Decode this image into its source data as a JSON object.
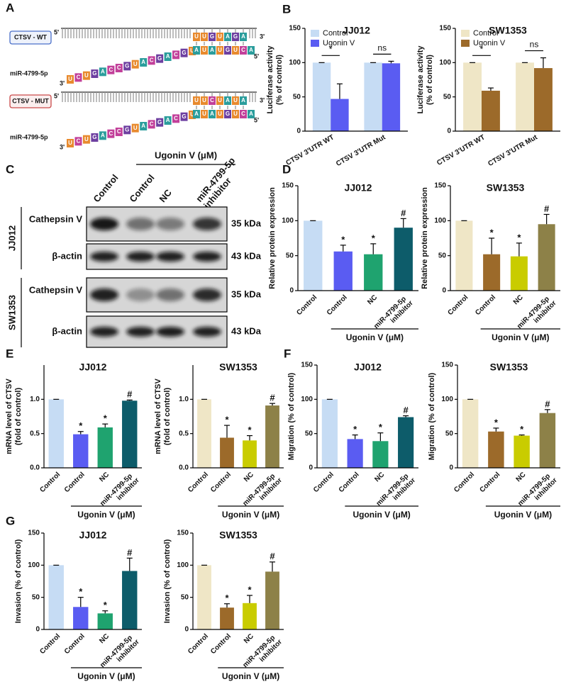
{
  "panel_a": {
    "label": "A",
    "five": "5'",
    "three": "3'",
    "mirna": "miR-4799-5p",
    "seq": "UCUGACCGUACGACGUAUAUGUCA",
    "constructs": [
      {
        "name": "CTSV - WT",
        "site": "UUGUAGA"
      },
      {
        "name": "CTSV - MUT",
        "site": "UUCUAUA"
      }
    ]
  },
  "panel_c": {
    "label": "C",
    "group_label": "Ugonin V (μM)",
    "lanes": [
      "Control",
      "Control",
      "NC",
      "miR-4799-5p inhibitor"
    ],
    "cell_lines": [
      "JJ012",
      "SW1353"
    ],
    "proteins": [
      {
        "name": "Cathepsin V",
        "size": "35 kDa"
      },
      {
        "name": "β-actin",
        "size": "43 kDa"
      }
    ]
  },
  "chart_data": [
    {
      "type": "bar",
      "panel": "B",
      "title": "JJ012",
      "ylabel": [
        "Luciferase activity",
        "(% of control)"
      ],
      "categories": [
        "CTSV 3'UTR WT",
        "CTSV 3'UTR Mut"
      ],
      "series": [
        {
          "name": "Control",
          "color": "#c6dcf4",
          "values": [
            100,
            100
          ],
          "errors": [
            0,
            0
          ]
        },
        {
          "name": "Ugonin V",
          "color": "#5a5cf2",
          "values": [
            47,
            99
          ],
          "errors": [
            22,
            3
          ]
        }
      ],
      "significance": [
        "*",
        "ns"
      ],
      "ylim": [
        0,
        150
      ],
      "yticks": [
        0,
        50,
        100,
        150
      ],
      "legend": "upper left"
    },
    {
      "type": "bar",
      "title": "SW1353",
      "ylabel": [
        "Luciferase activity",
        "(% of control)"
      ],
      "categories": [
        "CTSV 3'UTR WT",
        "CTSV 3'UTR Mut"
      ],
      "series": [
        {
          "name": "Control",
          "color": "#efe6c6",
          "values": [
            100,
            100
          ],
          "errors": [
            0,
            0
          ]
        },
        {
          "name": "Ugonin V",
          "color": "#9c6a2a",
          "values": [
            59,
            92
          ],
          "errors": [
            4,
            15
          ]
        }
      ],
      "significance": [
        "*",
        "ns"
      ],
      "ylim": [
        0,
        150
      ],
      "yticks": [
        0,
        50,
        100,
        150
      ],
      "legend": "upper left"
    },
    {
      "type": "bar",
      "panel": "D",
      "title": "JJ012",
      "ylabel": [
        "Relative protein expression"
      ],
      "categories": [
        "Control",
        "Control",
        "NC",
        "miR-4799-5p inhibitor"
      ],
      "values": [
        100,
        56,
        52,
        90
      ],
      "errors": [
        0,
        9,
        15,
        13
      ],
      "marks": [
        null,
        "*",
        "*",
        "#"
      ],
      "colors": [
        "#c6dcf4",
        "#5a5cf2",
        "#1fa36f",
        "#0d5c6a"
      ],
      "group_label": "Ugonin V (μM)",
      "ylim": [
        0,
        150
      ],
      "yticks": [
        0,
        50,
        100,
        150
      ]
    },
    {
      "type": "bar",
      "title": "SW1353",
      "ylabel": [
        "Relative protein expression"
      ],
      "categories": [
        "Control",
        "Control",
        "NC",
        "miR-4799-5p inhibitor"
      ],
      "values": [
        100,
        52,
        49,
        95
      ],
      "errors": [
        0,
        23,
        19,
        14
      ],
      "marks": [
        null,
        "*",
        "*",
        "#"
      ],
      "colors": [
        "#efe6c6",
        "#9c6a2a",
        "#c9cc00",
        "#8d8148"
      ],
      "group_label": "Ugonin V (μM)",
      "ylim": [
        0,
        150
      ],
      "yticks": [
        0,
        50,
        100,
        150
      ]
    },
    {
      "type": "bar",
      "panel": "E",
      "title": "JJ012",
      "ylabel": [
        "mRNA level of CTSV",
        "(fold of control)"
      ],
      "categories": [
        "Control",
        "Control",
        "NC",
        "miR-4799-5p inhibitor"
      ],
      "values": [
        1.0,
        0.49,
        0.59,
        0.98
      ],
      "errors": [
        0,
        0.04,
        0.05,
        0.01
      ],
      "marks": [
        null,
        "*",
        "*",
        "#"
      ],
      "colors": [
        "#c6dcf4",
        "#5a5cf2",
        "#1fa36f",
        "#0d5c6a"
      ],
      "group_label": "Ugonin V (μM)",
      "ylim": [
        0,
        1.5
      ],
      "yticks": [
        {
          "value": 0,
          "label": "0.0"
        },
        0.5,
        {
          "value": 1,
          "label": "1.0"
        }
      ]
    },
    {
      "type": "bar",
      "title": "SW1353",
      "ylabel": [
        "mRNA level of CTSV",
        "(fold of control)"
      ],
      "categories": [
        "Control",
        "Control",
        "NC",
        "miR-4799-5p inhibitor"
      ],
      "values": [
        1.0,
        0.44,
        0.4,
        0.91
      ],
      "errors": [
        0,
        0.18,
        0.07,
        0.03
      ],
      "marks": [
        null,
        "*",
        "*",
        "#"
      ],
      "colors": [
        "#efe6c6",
        "#9c6a2a",
        "#c9cc00",
        "#8d8148"
      ],
      "group_label": "Ugonin V (μM)",
      "ylim": [
        0,
        1.5
      ],
      "yticks": [
        {
          "value": 0,
          "label": "0.0"
        },
        0.5,
        {
          "value": 1,
          "label": "1.0"
        }
      ]
    },
    {
      "type": "bar",
      "panel": "F",
      "title": "JJ012",
      "ylabel": [
        "Migration (% of control)"
      ],
      "categories": [
        "Control",
        "Control",
        "NC",
        "miR-4799-5p inhibitor"
      ],
      "values": [
        100,
        42,
        39,
        74
      ],
      "errors": [
        0,
        6,
        12,
        2
      ],
      "marks": [
        null,
        "*",
        "*",
        "#"
      ],
      "colors": [
        "#c6dcf4",
        "#5a5cf2",
        "#1fa36f",
        "#0d5c6a"
      ],
      "group_label": "Ugonin V (μM)",
      "ylim": [
        0,
        150
      ],
      "yticks": [
        0,
        50,
        100,
        150
      ]
    },
    {
      "type": "bar",
      "title": "SW1353",
      "ylabel": [
        "Migration (% of control)"
      ],
      "categories": [
        "Control",
        "Control",
        "NC",
        "miR-4799-5p inhibitor"
      ],
      "values": [
        100,
        53,
        47,
        80
      ],
      "errors": [
        0,
        5,
        1,
        5
      ],
      "marks": [
        null,
        "*",
        "*",
        "#"
      ],
      "colors": [
        "#efe6c6",
        "#9c6a2a",
        "#c9cc00",
        "#8d8148"
      ],
      "group_label": "Ugonin V (μM)",
      "ylim": [
        0,
        150
      ],
      "yticks": [
        0,
        50,
        100,
        150
      ]
    },
    {
      "type": "bar",
      "panel": "G",
      "title": "JJ012",
      "ylabel": [
        "Invasion (% of control)"
      ],
      "categories": [
        "Control",
        "Control",
        "NC",
        "miR-4799-5p inhibitor"
      ],
      "values": [
        100,
        35,
        25,
        91
      ],
      "errors": [
        0,
        15,
        4,
        20
      ],
      "marks": [
        null,
        "*",
        "*",
        "#"
      ],
      "colors": [
        "#c6dcf4",
        "#5a5cf2",
        "#1fa36f",
        "#0d5c6a"
      ],
      "group_label": "Ugonin V (μM)",
      "ylim": [
        0,
        150
      ],
      "yticks": [
        0,
        50,
        100,
        150
      ]
    },
    {
      "type": "bar",
      "title": "SW1353",
      "ylabel": [
        "Invasion (% of control)"
      ],
      "categories": [
        "Control",
        "Control",
        "NC",
        "miR-4799-5p inhibitor"
      ],
      "values": [
        100,
        34,
        41,
        90
      ],
      "errors": [
        0,
        6,
        12,
        15
      ],
      "marks": [
        null,
        "*",
        "*",
        "#"
      ],
      "colors": [
        "#efe6c6",
        "#9c6a2a",
        "#c9cc00",
        "#8d8148"
      ],
      "group_label": "Ugonin V (μM)",
      "ylim": [
        0,
        150
      ],
      "yticks": [
        0,
        50,
        100,
        150
      ]
    }
  ]
}
